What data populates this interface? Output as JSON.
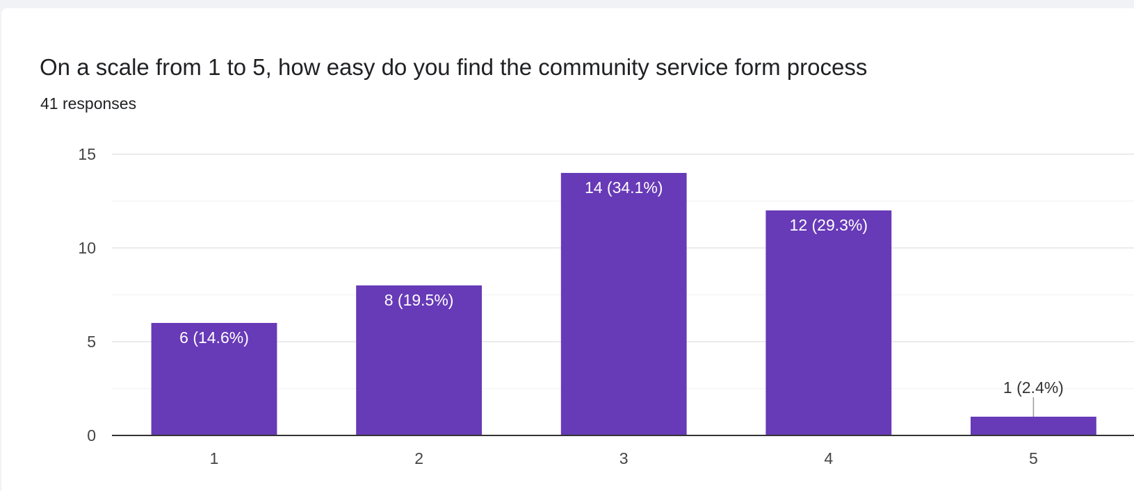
{
  "question": {
    "title": "On a scale from 1 to 5, how easy do you find the community service form process",
    "response_count": "41 responses"
  },
  "colors": {
    "bar": "#673ab7",
    "grid": "#ebebeb",
    "grid_minor": "#f5f5f5",
    "axis": "#333333",
    "label_inside": "#ffffff",
    "label_outside": "#333333"
  },
  "chart_data": {
    "type": "bar",
    "categories": [
      "1",
      "2",
      "3",
      "4",
      "5"
    ],
    "values": [
      6,
      8,
      14,
      12,
      1
    ],
    "data_labels": [
      "6 (14.6%)",
      "8 (19.5%)",
      "14 (34.1%)",
      "12 (29.3%)",
      "1 (2.4%)"
    ],
    "ylim": [
      0,
      15
    ],
    "yticks": [
      0,
      5,
      10,
      15
    ],
    "grid": true
  }
}
